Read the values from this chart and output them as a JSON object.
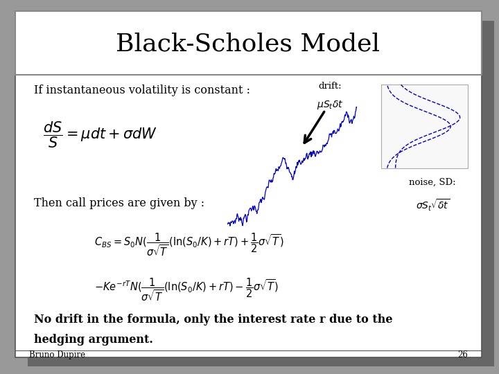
{
  "title": "Black-Scholes Model",
  "title_fontsize": 26,
  "text_color": "#000000",
  "blue_color": "#0000cc",
  "line1": "If instantaneous volatility is constant :",
  "eq1": "$\\dfrac{dS}{S} = \\mu dt + \\sigma dW$",
  "drift_label_1": "drift:",
  "drift_label_2": "$\\mu S_t \\delta t$",
  "noise_label_1": "noise, SD:",
  "noise_label_2": "$\\sigma S_t \\sqrt{\\delta t}$",
  "line2": "Then call prices are given by :",
  "eq2a": "$C_{BS} = S_0 N(\\dfrac{1}{\\sigma\\sqrt{T}}(\\ln(S_0 / K) + rT) + \\dfrac{1}{2}\\sigma\\sqrt{T})$",
  "eq2b": "$- Ke^{-rT} N(\\dfrac{1}{\\sigma\\sqrt{T}}(\\ln(S_0 / K) + rT) - \\dfrac{1}{2}\\sigma\\sqrt{T})$",
  "footnote1": "No drift in the formula, only the interest rate r due to the",
  "footnote2": "hedging argument.",
  "author": "Bruno Dupire",
  "page": "26",
  "outer_bg": "#999999",
  "slide_bg": "#ffffff",
  "shadow_color": "#666666",
  "title_border_color": "#888888"
}
